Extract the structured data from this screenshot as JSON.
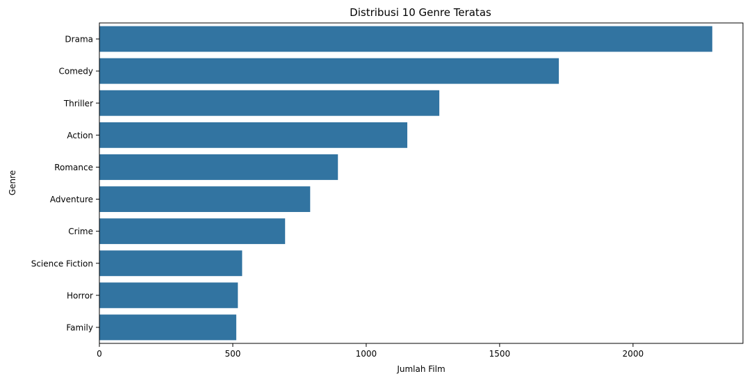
{
  "chart_data": {
    "type": "bar",
    "orientation": "horizontal",
    "title": "Distribusi 10 Genre Teratas",
    "xlabel": "Jumlah Film",
    "ylabel": "Genre",
    "categories": [
      "Drama",
      "Comedy",
      "Thriller",
      "Action",
      "Romance",
      "Adventure",
      "Crime",
      "Science Fiction",
      "Horror",
      "Family"
    ],
    "values": [
      2297,
      1722,
      1274,
      1154,
      894,
      790,
      696,
      535,
      519,
      513
    ],
    "xlim": [
      0,
      2412
    ],
    "xticks": [
      0,
      500,
      1000,
      1500,
      2000
    ],
    "grid": false,
    "bar_color": "#3274a1"
  }
}
